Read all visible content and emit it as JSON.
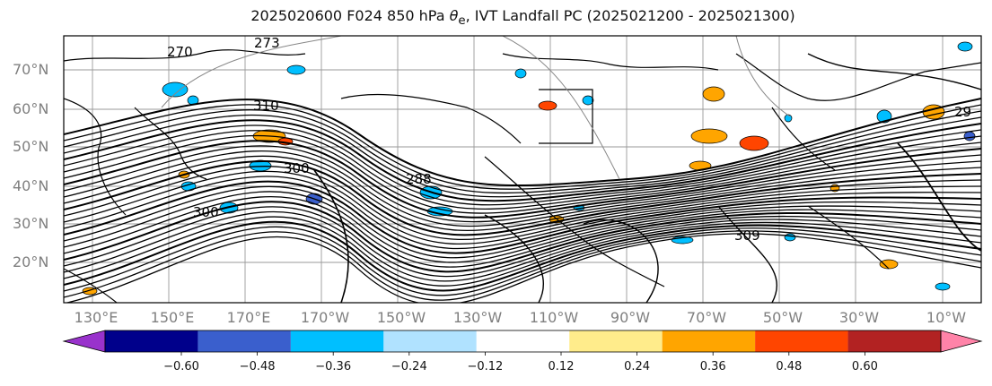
{
  "title": {
    "prefix": "2025020600 F024 850 hPa ",
    "theta_symbol": "θ",
    "theta_sub": "e",
    "suffix": ", IVT Landfall PC (2025021200 - 2025021300)"
  },
  "lat_labels": [
    "70°N",
    "60°N",
    "50°N",
    "40°N",
    "30°N",
    "20°N"
  ],
  "lon_labels": [
    "130°E",
    "150°E",
    "170°E",
    "170°W",
    "150°W",
    "130°W",
    "110°W",
    "90°W",
    "70°W",
    "50°W",
    "30°W",
    "10°W"
  ],
  "contour_labels": [
    "270",
    "273",
    "310",
    "300",
    "288",
    "300",
    "309",
    "29"
  ],
  "colorbar": {
    "ticks": [
      "−0.60",
      "−0.48",
      "−0.36",
      "−0.24",
      "−0.12",
      "0.12",
      "0.24",
      "0.36",
      "0.48",
      "0.60"
    ],
    "colors": [
      "#9932cc",
      "#00008b",
      "#3a5fcd",
      "#00bfff",
      "#b0e2ff",
      "#ffffff",
      "#ffec8b",
      "#ffa500",
      "#ff4500",
      "#b22222",
      "#ff83a8"
    ]
  },
  "colors": {
    "contour": "#000000",
    "grid": "#999999",
    "coast": "#000000",
    "label": "#7f7f7f"
  }
}
